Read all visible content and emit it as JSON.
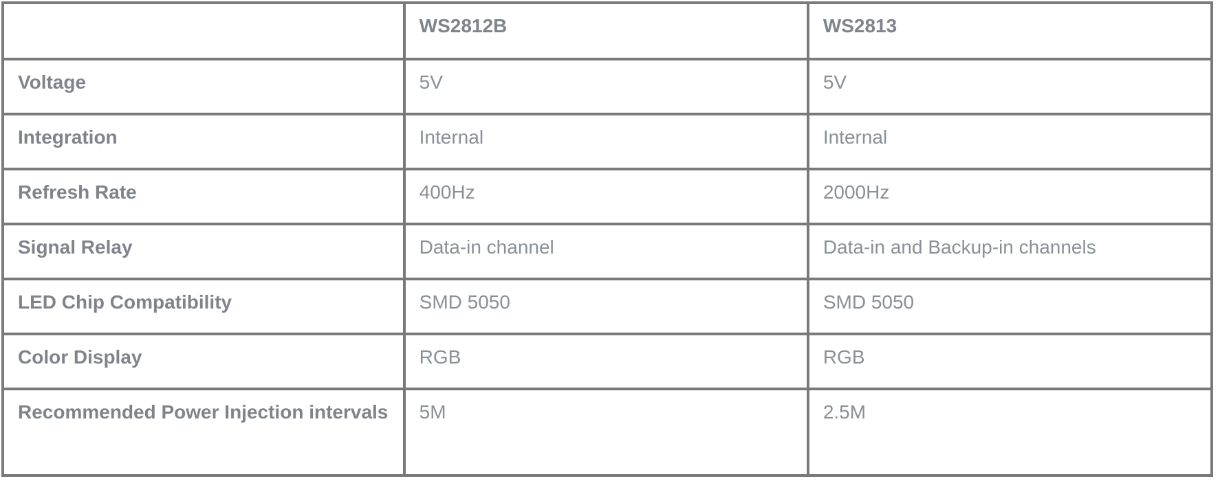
{
  "table": {
    "title_semantic": "WS2812B vs WS2813 comparison table",
    "columns": [
      {
        "label": ""
      },
      {
        "label": "WS2812B"
      },
      {
        "label": "WS2813"
      }
    ],
    "rows": [
      {
        "label": "Voltage",
        "ws2812b": "5V",
        "ws2813": "5V"
      },
      {
        "label": "Integration",
        "ws2812b": "Internal",
        "ws2813": "Internal"
      },
      {
        "label": "Refresh Rate",
        "ws2812b": "400Hz",
        "ws2813": "2000Hz"
      },
      {
        "label": "Signal Relay",
        "ws2812b": "Data-in channel",
        "ws2813": "Data-in and Backup-in channels"
      },
      {
        "label": "LED Chip Compatibility",
        "ws2812b": "SMD 5050",
        "ws2813": "SMD 5050"
      },
      {
        "label": "Color Display",
        "ws2812b": "RGB",
        "ws2813": "RGB"
      },
      {
        "label": "Recommended Power Injection intervals",
        "ws2812b": "5M",
        "ws2813": "2.5M"
      }
    ],
    "colors": {
      "border": "#7a7a7a",
      "header_text": "#7f848b",
      "label_text": "#7f848b",
      "value_text": "#8a9097",
      "background": "#ffffff"
    }
  }
}
